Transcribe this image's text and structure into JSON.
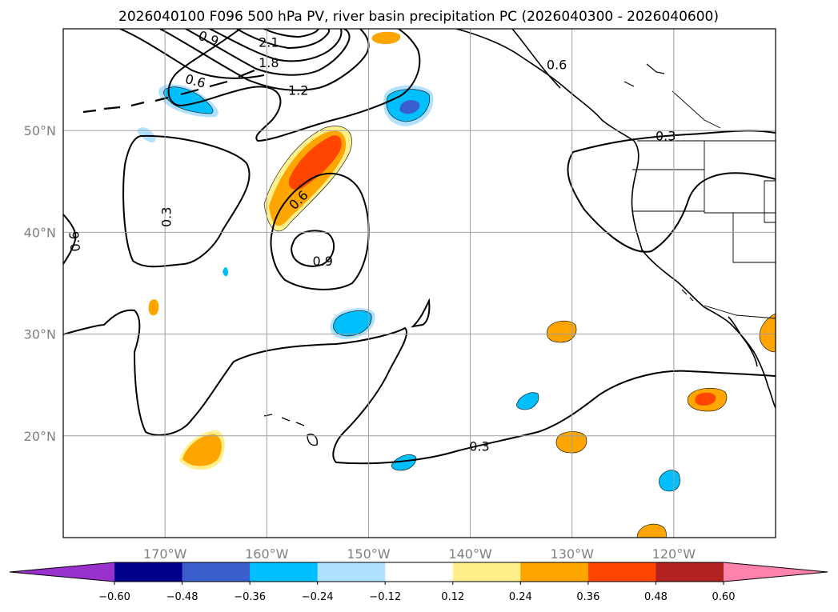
{
  "chart_data": {
    "type": "map-contour",
    "title": "2026040100 F096 500 hPa PV, river basin precipitation PC (2026040300 - 2026040600)",
    "map_extent": {
      "lon": [
        -180,
        -110
      ],
      "lat": [
        10,
        60
      ]
    },
    "grid": true,
    "x_ticks": [
      {
        "lon": -170,
        "label": "170°W"
      },
      {
        "lon": -160,
        "label": "160°W"
      },
      {
        "lon": -150,
        "label": "150°W"
      },
      {
        "lon": -140,
        "label": "140°W"
      },
      {
        "lon": -130,
        "label": "130°W"
      },
      {
        "lon": -120,
        "label": "120°W"
      }
    ],
    "y_ticks": [
      {
        "lat": 50,
        "label": "50°N"
      },
      {
        "lat": 40,
        "label": "40°N"
      },
      {
        "lat": 30,
        "label": "30°N"
      },
      {
        "lat": 20,
        "label": "20°N"
      }
    ],
    "contour_labels": [
      {
        "text": "2.1",
        "lon": -159.8,
        "lat": 58.7
      },
      {
        "text": "1.8",
        "lon": -159.8,
        "lat": 56.7
      },
      {
        "text": "1.2",
        "lon": -156.9,
        "lat": 54.0
      },
      {
        "text": "0.9",
        "lon": -165.7,
        "lat": 59.1,
        "rotate": 20
      },
      {
        "text": "0.6",
        "lon": -167.0,
        "lat": 54.9,
        "rotate": 15
      },
      {
        "text": "0.6",
        "lon": -156.9,
        "lat": 43.2,
        "rotate": -45
      },
      {
        "text": "0.3",
        "lon": -169.9,
        "lat": 41.5,
        "rotate": -90
      },
      {
        "text": "0.6",
        "lon": -178.9,
        "lat": 39.1,
        "rotate": -95
      },
      {
        "text": "0.9",
        "lon": -154.5,
        "lat": 37.2
      },
      {
        "text": "0.3",
        "lon": -120.8,
        "lat": 49.5
      },
      {
        "text": "0.3",
        "lon": -139.1,
        "lat": 19.0
      },
      {
        "text": "0.6",
        "lon": -131.5,
        "lat": 56.5
      }
    ],
    "colorbar": {
      "extend": "both",
      "ticks": [
        "−0.60",
        "−0.48",
        "−0.36",
        "−0.24",
        "−0.12",
        "0.12",
        "0.24",
        "0.36",
        "0.48",
        "0.60"
      ],
      "colors": [
        "#9932cc",
        "#00008b",
        "#3a5fcd",
        "#00bfff",
        "#b0e2ff",
        "#ffffff",
        "#fff08c",
        "#ffa500",
        "#ff4500",
        "#b22222",
        "#ff82ab"
      ]
    }
  }
}
